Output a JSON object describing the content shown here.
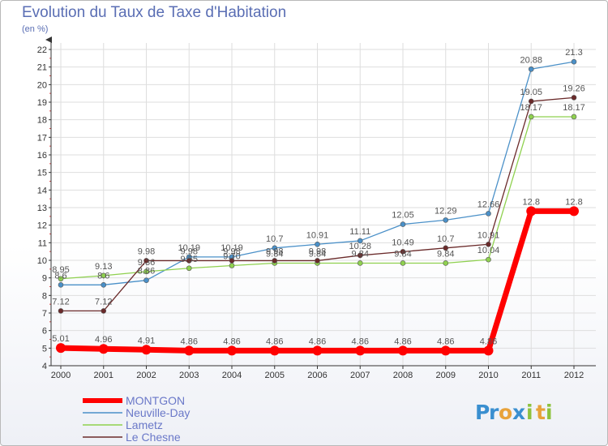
{
  "header": {
    "title": "Evolution du Taux de Taxe d'Habitation",
    "subtitle": "(en %)"
  },
  "brand": {
    "letters": [
      {
        "ch": "P",
        "color": "#3a8fd0"
      },
      {
        "ch": "r",
        "color": "#3a8fd0"
      },
      {
        "ch": "o",
        "color": "#e8a23a"
      },
      {
        "ch": "x",
        "color": "#3a8fd0"
      },
      {
        "ch": "i",
        "color": "#8ec23e"
      },
      {
        "ch": "t",
        "color": "#e8a23a"
      },
      {
        "ch": "i",
        "color": "#8ec23e"
      }
    ]
  },
  "chart_data": {
    "type": "line",
    "title": "Evolution du Taux de Taxe d'Habitation",
    "ylabel": "(en %)",
    "xlabel": "",
    "ylim": [
      4,
      22
    ],
    "y_ticks": [
      "4",
      "5",
      "6",
      "7",
      "8",
      "9",
      "10",
      "11",
      "12",
      "13",
      "14",
      "15",
      "16",
      "17",
      "18",
      "19",
      "20",
      "21",
      "22"
    ],
    "categories": [
      "2000",
      "2001",
      "2002",
      "2003",
      "2004",
      "2005",
      "2006",
      "2007",
      "2008",
      "2009",
      "2010",
      "2011",
      "2012"
    ],
    "series": [
      {
        "name": "MONTGON",
        "color": "#ff0000",
        "values": [
          5.01,
          4.96,
          4.91,
          4.86,
          4.86,
          4.86,
          4.86,
          4.86,
          4.86,
          4.86,
          4.86,
          12.8,
          12.8
        ],
        "labels": [
          "5.01",
          "4.96",
          "4.91",
          "4.86",
          "4.86",
          "4.86",
          "4.86",
          "4.86",
          "4.86",
          "4.86",
          "4.86",
          "12.8",
          "12.8"
        ]
      },
      {
        "name": "Neuville-Day",
        "color": "#4a90c8",
        "values": [
          8.6,
          8.6,
          8.86,
          10.19,
          10.19,
          10.7,
          10.91,
          11.11,
          12.05,
          12.29,
          12.66,
          20.88,
          21.3
        ],
        "labels": [
          "8.6",
          "8.6",
          "8.86",
          "10.19",
          "10.19",
          "10.7",
          "10.91",
          "11.11",
          "12.05",
          "12.29",
          "12.66",
          "20.88",
          "21.3"
        ]
      },
      {
        "name": "Lametz",
        "color": "#8fd14f",
        "values": [
          8.95,
          9.13,
          9.36,
          9.55,
          9.7,
          9.84,
          9.84,
          9.84,
          9.84,
          9.84,
          10.04,
          18.17,
          18.17
        ],
        "labels": [
          "8.95",
          "9.13",
          "9.36",
          "9.55",
          "9.70",
          "9.84",
          "9.84",
          "9.84",
          "9.84",
          "9.84",
          "10.04",
          "18.17",
          "18.17"
        ]
      },
      {
        "name": "Le Chesne",
        "color": "#6a2a2a",
        "values": [
          7.12,
          7.12,
          9.98,
          9.98,
          9.98,
          9.98,
          9.98,
          10.28,
          10.49,
          10.7,
          10.91,
          19.05,
          19.26
        ],
        "labels": [
          "7.12",
          "7.12",
          "9.98",
          "9.98",
          "9.98",
          "9.98",
          "9.98",
          "10.28",
          "10.49",
          "10.7",
          "10.91",
          "19.05",
          "19.26"
        ]
      }
    ],
    "grid": true,
    "legend_position": "bottom-left"
  }
}
